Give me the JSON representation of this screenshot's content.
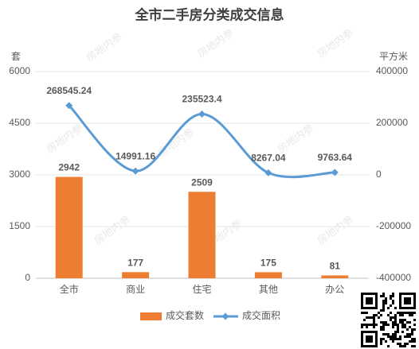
{
  "chart_data": {
    "type": "bar",
    "title": "全市二手房分类成交信息",
    "y_label": "套",
    "y2_label": "平方米",
    "watermark": "房地内参",
    "categories": [
      "全市",
      "商业",
      "住宅",
      "其他",
      "办公"
    ],
    "series": [
      {
        "name": "成交套数",
        "type": "bar",
        "color": "#ed7d31",
        "label_color": "#c55a11",
        "values": [
          2942,
          177,
          2509,
          175,
          81
        ]
      },
      {
        "name": "成交面积",
        "type": "line",
        "axis": "y2",
        "color": "#5b9bd5",
        "label_color": "#5b9bd5",
        "values": [
          268545.24,
          14991.16,
          235523.4,
          8267.04,
          9763.64
        ]
      }
    ],
    "ylim": [
      0,
      6000
    ],
    "yticks": [
      0,
      1500,
      3000,
      4500,
      6000
    ],
    "y2lim": [
      -400000,
      400000
    ],
    "y2ticks": [
      -400000,
      -200000,
      0,
      200000,
      400000
    ],
    "grid": true,
    "legend": "bottom"
  }
}
